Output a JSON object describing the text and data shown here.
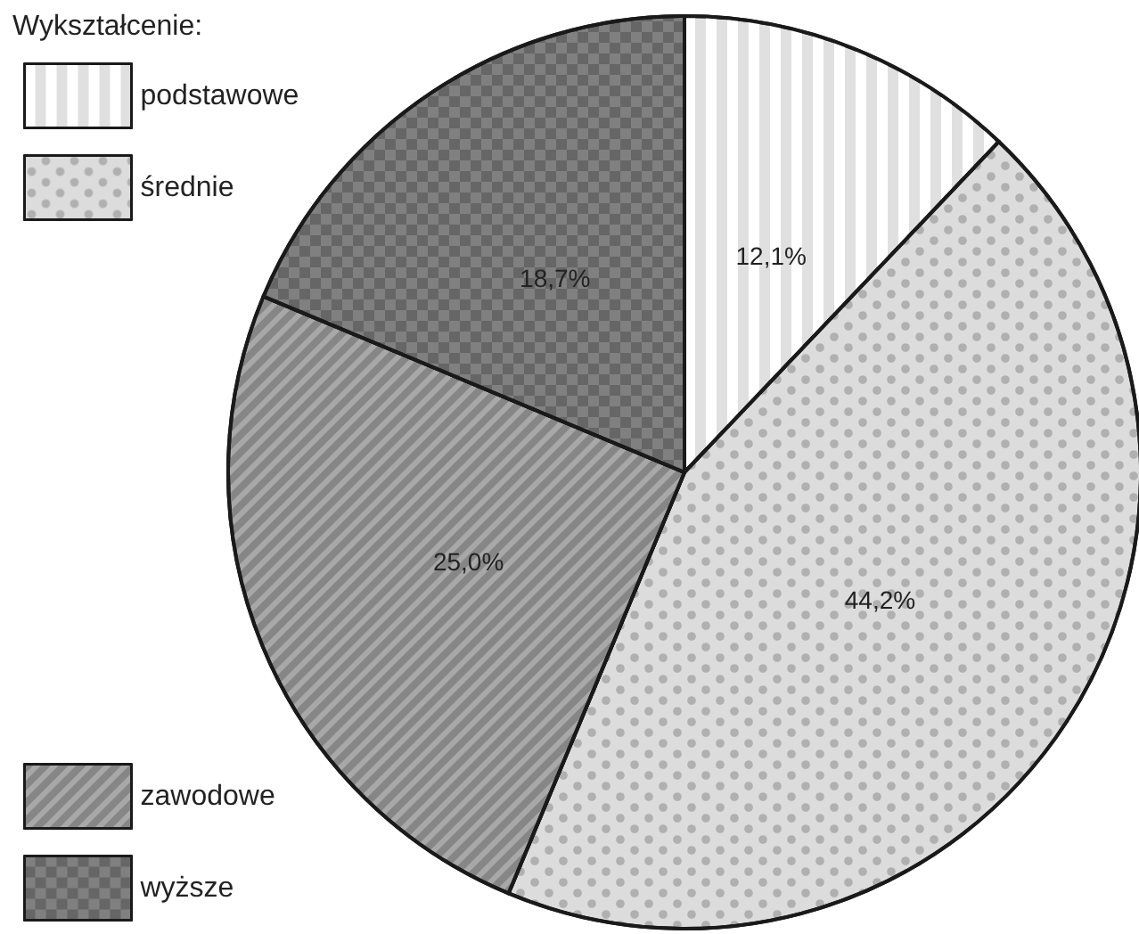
{
  "chart_data": {
    "type": "pie",
    "legend_title": "Wykształcenie:",
    "categories": [
      "podstawowe",
      "średnie",
      "zawodowe",
      "wyższe"
    ],
    "values": [
      12.1,
      44.2,
      25.0,
      18.7
    ],
    "colors": [
      "#e0e0e0",
      "#dcdcdc",
      "#a8a8a8",
      "#808080"
    ],
    "value_labels": [
      "12,1%",
      "44,2%",
      "25,0%",
      "18,7%"
    ],
    "legend": "left"
  }
}
